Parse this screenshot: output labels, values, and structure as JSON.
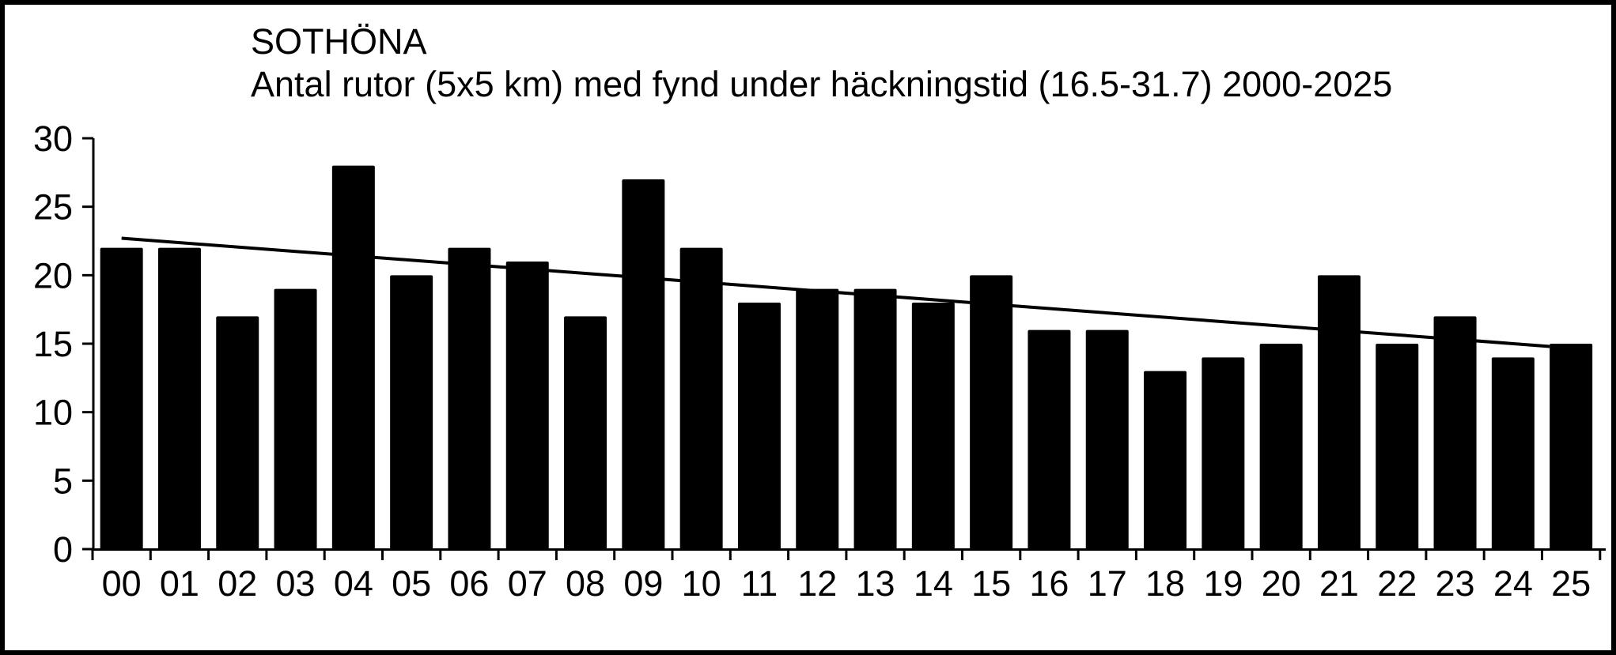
{
  "chart_data": {
    "type": "bar",
    "title": "SOTHÖNA",
    "subtitle": "Antal rutor (5x5 km) med fynd under häckningstid (16.5-31.7) 2000-2025",
    "categories": [
      "00",
      "01",
      "02",
      "03",
      "04",
      "05",
      "06",
      "07",
      "08",
      "09",
      "10",
      "11",
      "12",
      "13",
      "14",
      "15",
      "16",
      "17",
      "18",
      "19",
      "20",
      "21",
      "22",
      "23",
      "24",
      "25"
    ],
    "values": [
      22,
      22,
      17,
      19,
      28,
      20,
      22,
      21,
      17,
      27,
      22,
      18,
      19,
      19,
      18,
      20,
      16,
      16,
      13,
      14,
      15,
      20,
      15,
      17,
      14,
      15
    ],
    "xlabel": "",
    "ylabel": "",
    "ylim": [
      0,
      30
    ],
    "yticks": [
      0,
      5,
      10,
      15,
      20,
      25,
      30
    ],
    "grid": false,
    "legend": "none",
    "bar_color": "#000000",
    "background_color": "#ffffff",
    "frame_color": "#000000",
    "trendline": {
      "start_value": 22.7,
      "end_value": 14.8
    }
  }
}
